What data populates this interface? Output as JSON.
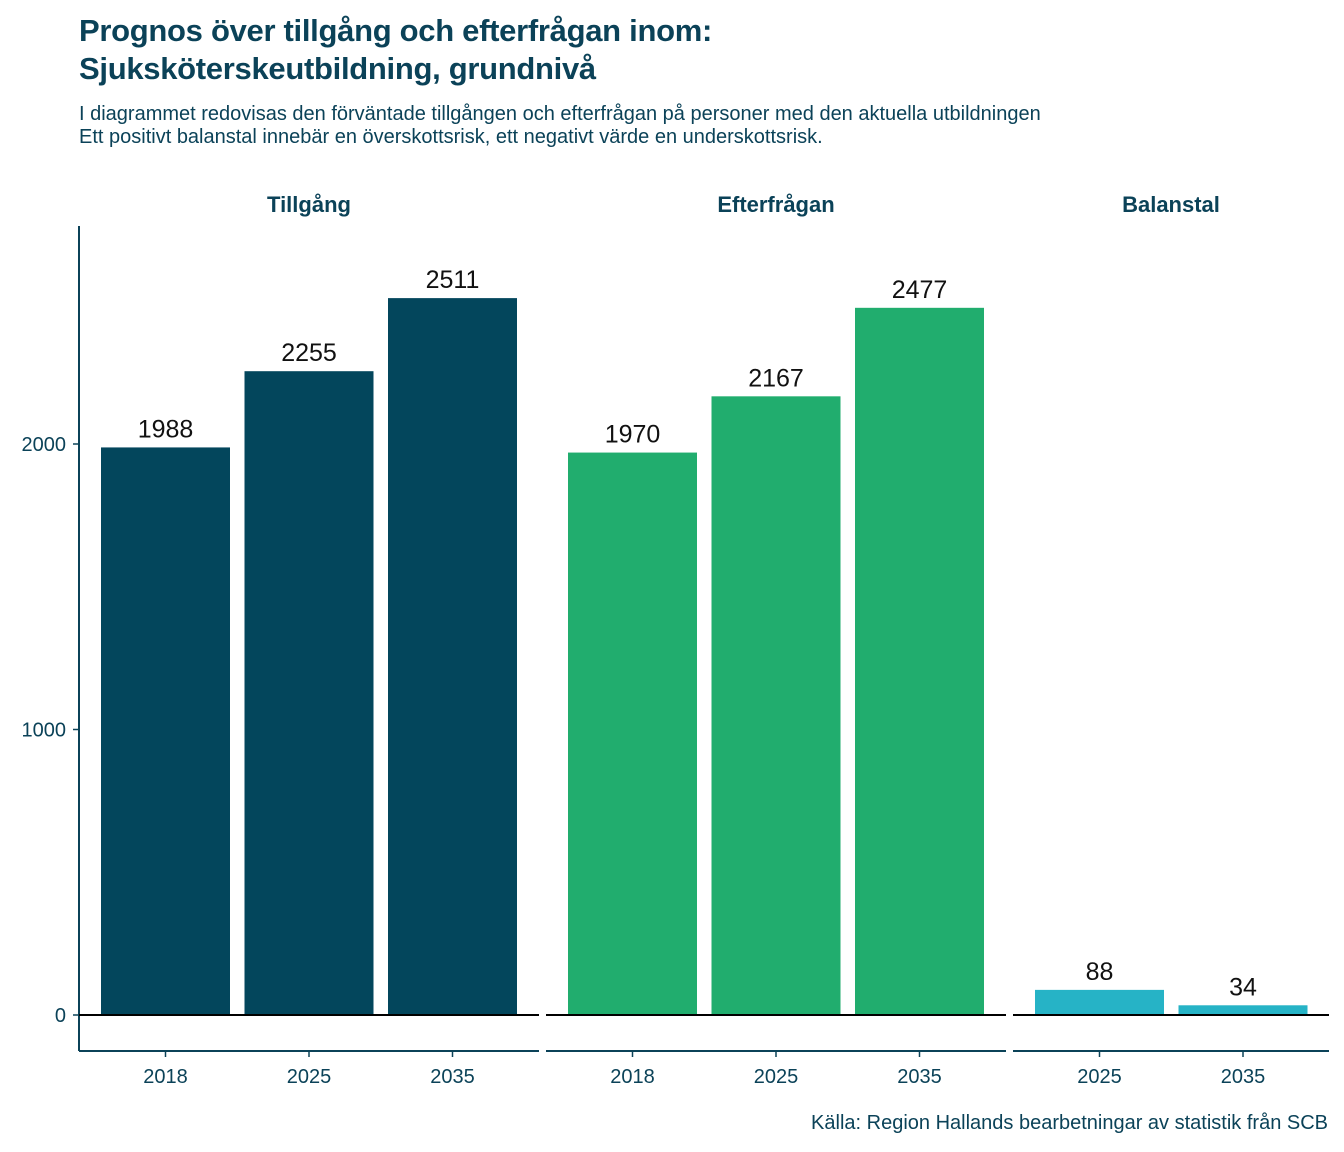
{
  "title_line1": "Prognos över tillgång och efterfrågan inom:",
  "title_line2": "Sjuksköterskeutbildning, grundnivå",
  "subtitle_line1": "I diagrammet redovisas den förväntade tillgången och efterfrågan på personer med den aktuella utbildningen",
  "subtitle_line2": "Ett positivt balanstal innebär en överskottsrisk, ett negativt värde en underskottsrisk.",
  "caption": "Källa: Region Hallands bearbetningar av statistik från SCB",
  "chart_data": {
    "type": "bar",
    "ylim": [
      -125,
      2750
    ],
    "y_ticks": [
      0,
      1000,
      2000
    ],
    "grid": false,
    "facets": [
      {
        "name": "Tillgång",
        "color": "#03465c",
        "categories": [
          "2018",
          "2025",
          "2035"
        ],
        "values": [
          1988,
          2255,
          2511
        ]
      },
      {
        "name": "Efterfrågan",
        "color": "#21ad6e",
        "categories": [
          "2018",
          "2025",
          "2035"
        ],
        "values": [
          1970,
          2167,
          2477
        ]
      },
      {
        "name": "Balanstal",
        "color": "#26b3c6",
        "categories": [
          "2025",
          "2035"
        ],
        "values": [
          88,
          34
        ]
      }
    ]
  }
}
